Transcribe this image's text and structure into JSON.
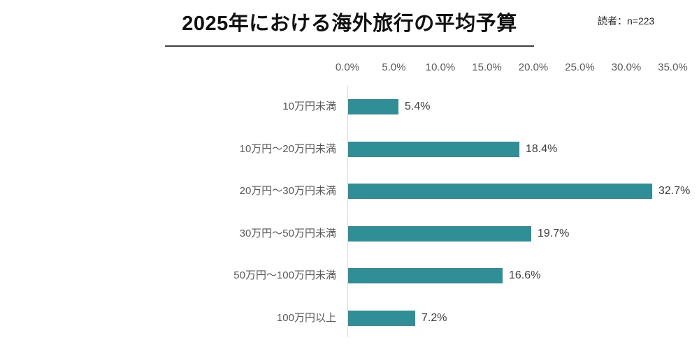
{
  "header": {
    "title": "2025年における海外旅行の平均予算",
    "sample_note": "読者：n=223"
  },
  "chart_data": {
    "type": "bar",
    "orientation": "horizontal",
    "title": "2025年における海外旅行の平均予算",
    "sample_size_label": "読者：n=223",
    "categories": [
      "10万円未満",
      "10万円～20万円未満",
      "20万円～30万円未満",
      "30万円～50万円未満",
      "50万円～100万円未満",
      "100万円以上"
    ],
    "values": [
      5.4,
      18.4,
      32.7,
      19.7,
      16.6,
      7.2
    ],
    "value_labels": [
      "5.4%",
      "18.4%",
      "32.7%",
      "19.7%",
      "16.6%",
      "7.2%"
    ],
    "x_ticks": [
      "0.0%",
      "5.0%",
      "10.0%",
      "15.0%",
      "20.0%",
      "25.0%",
      "30.0%",
      "35.0%"
    ],
    "xlim": [
      0,
      35
    ],
    "x_tick_step": 5,
    "xlabel": "",
    "ylabel": "",
    "grid": false,
    "legend": false,
    "bar_color": "#2F8E96",
    "axis_line_color": "#D9D9D9",
    "label_color": "#595959",
    "value_label_color": "#3C3C3C"
  }
}
